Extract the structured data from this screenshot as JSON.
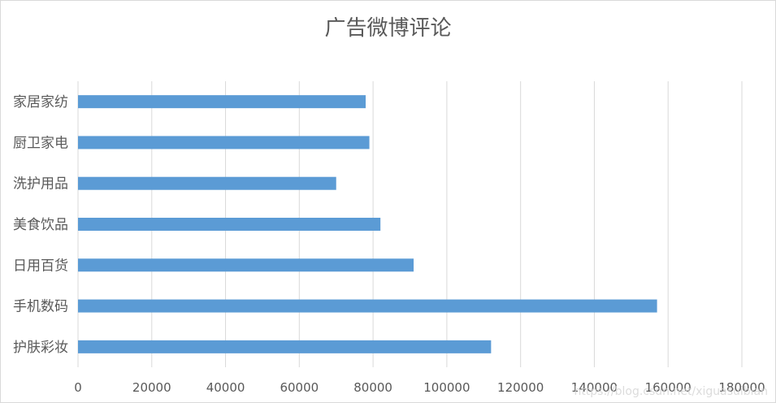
{
  "chart_data": {
    "type": "bar",
    "orientation": "horizontal",
    "title": "广告微博评论",
    "categories": [
      "护肤彩妆",
      "手机数码",
      "日用百货",
      "美食饮品",
      "洗护用品",
      "厨卫家电",
      "家居家纺"
    ],
    "values": [
      112000,
      157000,
      91000,
      82000,
      70000,
      79000,
      78000
    ],
    "xlim": [
      0,
      180000
    ],
    "xticks": [
      0,
      20000,
      40000,
      60000,
      80000,
      100000,
      120000,
      140000,
      160000,
      180000
    ],
    "grid": true,
    "bar_color": "#5b9bd5",
    "legend": "none"
  },
  "watermark": "https://blog.csdn.net/xiguasuibian"
}
